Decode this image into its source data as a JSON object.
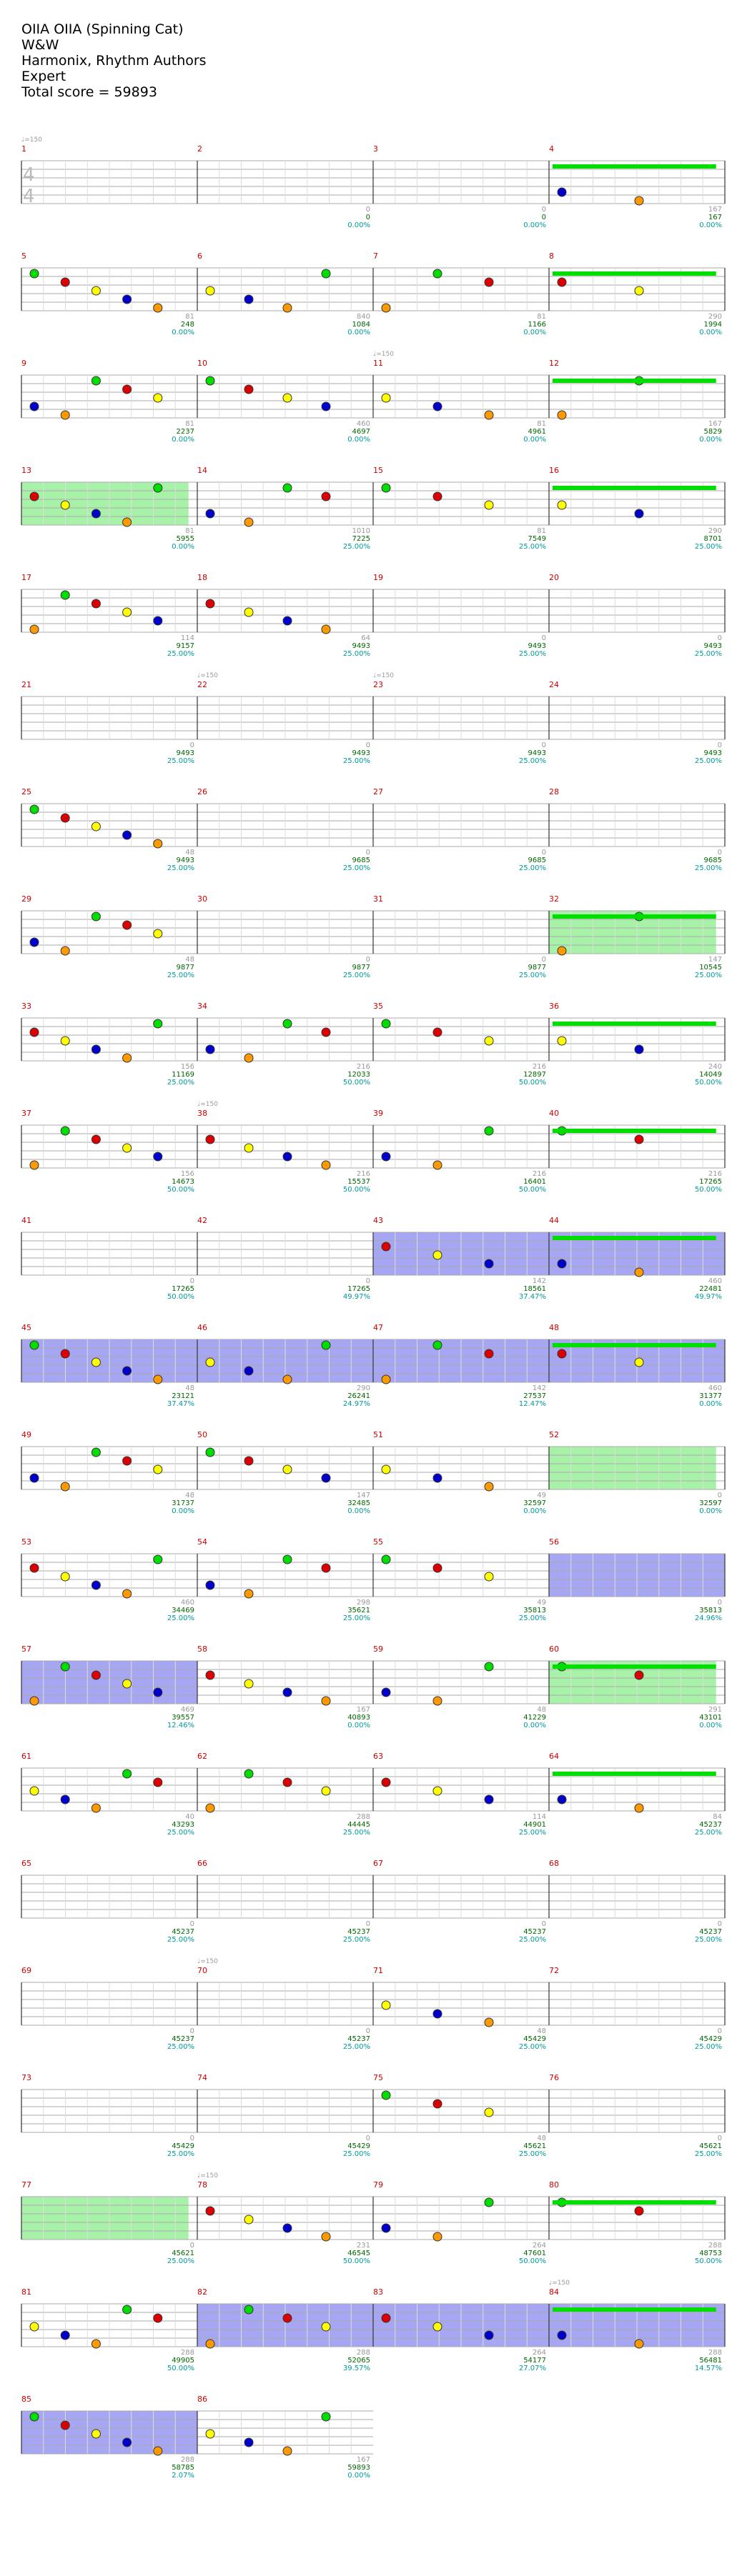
{
  "header": {
    "title": "OIIA OIIA (Spinning Cat)",
    "artist": "W&W",
    "charter": "Harmonix, Rhythm Authors",
    "difficulty": "Expert",
    "total_score": "Total score = 59893"
  },
  "time_signature": {
    "top": "4",
    "bottom": "4"
  },
  "tempo_markers": [
    {
      "measure": 1,
      "text": "♩=150"
    },
    {
      "measure": 11,
      "text": "♩=150"
    },
    {
      "measure": 22,
      "text": "♩=150"
    },
    {
      "measure": 23,
      "text": "♩=150"
    },
    {
      "measure": 38,
      "text": "♩=150"
    },
    {
      "measure": 70,
      "text": "♩=150"
    },
    {
      "measure": 78,
      "text": "♩=150"
    },
    {
      "measure": 84,
      "text": "♩=150"
    }
  ],
  "colors": {
    "measure_number": "#cc0000",
    "score_grey": "#999999",
    "score_green": "#006600",
    "percent_teal": "#009999",
    "green_gem": "#00dd00",
    "red_gem": "#dd0000",
    "yellow_gem": "#ffff00",
    "blue_gem": "#0000cc",
    "orange_gem": "#ff9900",
    "overdrive": "#99ee99",
    "solo": "#8888ee"
  },
  "measures": [
    {
      "n": 1,
      "pts": "",
      "score": "",
      "pct": ""
    },
    {
      "n": 2,
      "pts": "0",
      "score": "0",
      "pct": "0.00%"
    },
    {
      "n": 3,
      "pts": "0",
      "score": "0",
      "pct": "0.00%"
    },
    {
      "n": 4,
      "pts": "167",
      "score": "167",
      "pct": "0.00%"
    },
    {
      "n": 5,
      "pts": "81",
      "score": "248",
      "pct": "0.00%"
    },
    {
      "n": 6,
      "pts": "840",
      "score": "1084",
      "pct": "0.00%"
    },
    {
      "n": 7,
      "pts": "81",
      "score": "1166",
      "pct": "0.00%"
    },
    {
      "n": 8,
      "pts": "290",
      "score": "1994",
      "pct": "0.00%"
    },
    {
      "n": 9,
      "pts": "81",
      "score": "2237",
      "pct": "0.00%"
    },
    {
      "n": 10,
      "pts": "460",
      "score": "4697",
      "pct": "0.00%"
    },
    {
      "n": 11,
      "pts": "81",
      "score": "4961",
      "pct": "0.00%"
    },
    {
      "n": 12,
      "pts": "167",
      "score": "5829",
      "pct": "0.00%"
    },
    {
      "n": 13,
      "pts": "81",
      "score": "5955",
      "pct": "0.00%"
    },
    {
      "n": 14,
      "pts": "1010",
      "score": "7225",
      "pct": "25.00%"
    },
    {
      "n": 15,
      "pts": "81",
      "score": "7549",
      "pct": "25.00%"
    },
    {
      "n": 16,
      "pts": "290",
      "score": "8701",
      "pct": "25.00%"
    },
    {
      "n": 17,
      "pts": "114",
      "score": "9157",
      "pct": "25.00%"
    },
    {
      "n": 18,
      "pts": "64",
      "score": "9493",
      "pct": "25.00%"
    },
    {
      "n": 19,
      "pts": "0",
      "score": "9493",
      "pct": "25.00%"
    },
    {
      "n": 20,
      "pts": "0",
      "score": "9493",
      "pct": "25.00%"
    },
    {
      "n": 21,
      "pts": "0",
      "score": "9493",
      "pct": "25.00%"
    },
    {
      "n": 22,
      "pts": "0",
      "score": "9493",
      "pct": "25.00%"
    },
    {
      "n": 23,
      "pts": "0",
      "score": "9493",
      "pct": "25.00%"
    },
    {
      "n": 24,
      "pts": "0",
      "score": "9493",
      "pct": "25.00%"
    },
    {
      "n": 25,
      "pts": "48",
      "score": "9493",
      "pct": "25.00%"
    },
    {
      "n": 26,
      "pts": "0",
      "score": "9685",
      "pct": "25.00%"
    },
    {
      "n": 27,
      "pts": "0",
      "score": "9685",
      "pct": "25.00%"
    },
    {
      "n": 28,
      "pts": "0",
      "score": "9685",
      "pct": "25.00%"
    },
    {
      "n": 29,
      "pts": "48",
      "score": "9877",
      "pct": "25.00%"
    },
    {
      "n": 30,
      "pts": "0",
      "score": "9877",
      "pct": "25.00%"
    },
    {
      "n": 31,
      "pts": "0",
      "score": "9877",
      "pct": "25.00%"
    },
    {
      "n": 32,
      "pts": "147",
      "score": "10545",
      "pct": "25.00%"
    },
    {
      "n": 33,
      "pts": "156",
      "score": "11169",
      "pct": "25.00%"
    },
    {
      "n": 34,
      "pts": "216",
      "score": "12033",
      "pct": "50.00%"
    },
    {
      "n": 35,
      "pts": "216",
      "score": "12897",
      "pct": "50.00%"
    },
    {
      "n": 36,
      "pts": "240",
      "score": "14049",
      "pct": "50.00%"
    },
    {
      "n": 37,
      "pts": "156",
      "score": "14673",
      "pct": "50.00%"
    },
    {
      "n": 38,
      "pts": "216",
      "score": "15537",
      "pct": "50.00%"
    },
    {
      "n": 39,
      "pts": "216",
      "score": "16401",
      "pct": "50.00%"
    },
    {
      "n": 40,
      "pts": "216",
      "score": "17265",
      "pct": "50.00%"
    },
    {
      "n": 41,
      "pts": "0",
      "score": "17265",
      "pct": "50.00%"
    },
    {
      "n": 42,
      "pts": "0",
      "score": "17265",
      "pct": "49.97%"
    },
    {
      "n": 43,
      "pts": "142",
      "score": "18561",
      "pct": "37.47%"
    },
    {
      "n": 44,
      "pts": "460",
      "score": "22481",
      "pct": "49.97%"
    },
    {
      "n": 45,
      "pts": "48",
      "score": "23121",
      "pct": "37.47%"
    },
    {
      "n": 46,
      "pts": "290",
      "score": "26241",
      "pct": "24.97%"
    },
    {
      "n": 47,
      "pts": "142",
      "score": "27537",
      "pct": "12.47%"
    },
    {
      "n": 48,
      "pts": "460",
      "score": "31377",
      "pct": "0.00%"
    },
    {
      "n": 49,
      "pts": "48",
      "score": "31737",
      "pct": "0.00%"
    },
    {
      "n": 50,
      "pts": "147",
      "score": "32485",
      "pct": "0.00%"
    },
    {
      "n": 51,
      "pts": "49",
      "score": "32597",
      "pct": "0.00%"
    },
    {
      "n": 52,
      "pts": "0",
      "score": "32597",
      "pct": "0.00%"
    },
    {
      "n": 53,
      "pts": "460",
      "score": "34469",
      "pct": "25.00%"
    },
    {
      "n": 54,
      "pts": "298",
      "score": "35621",
      "pct": "25.00%"
    },
    {
      "n": 55,
      "pts": "49",
      "score": "35813",
      "pct": "25.00%"
    },
    {
      "n": 56,
      "pts": "0",
      "score": "35813",
      "pct": "24.96%"
    },
    {
      "n": 57,
      "pts": "469",
      "score": "39557",
      "pct": "12.46%"
    },
    {
      "n": 58,
      "pts": "167",
      "score": "40893",
      "pct": "0.00%"
    },
    {
      "n": 59,
      "pts": "48",
      "score": "41229",
      "pct": "0.00%"
    },
    {
      "n": 60,
      "pts": "291",
      "score": "43101",
      "pct": "0.00%"
    },
    {
      "n": 61,
      "pts": "40",
      "score": "43293",
      "pct": "25.00%"
    },
    {
      "n": 62,
      "pts": "288",
      "score": "44445",
      "pct": "25.00%"
    },
    {
      "n": 63,
      "pts": "114",
      "score": "44901",
      "pct": "25.00%"
    },
    {
      "n": 64,
      "pts": "84",
      "score": "45237",
      "pct": "25.00%"
    },
    {
      "n": 65,
      "pts": "0",
      "score": "45237",
      "pct": "25.00%"
    },
    {
      "n": 66,
      "pts": "0",
      "score": "45237",
      "pct": "25.00%"
    },
    {
      "n": 67,
      "pts": "0",
      "score": "45237",
      "pct": "25.00%"
    },
    {
      "n": 68,
      "pts": "0",
      "score": "45237",
      "pct": "25.00%"
    },
    {
      "n": 69,
      "pts": "0",
      "score": "45237",
      "pct": "25.00%"
    },
    {
      "n": 70,
      "pts": "0",
      "score": "45237",
      "pct": "25.00%"
    },
    {
      "n": 71,
      "pts": "48",
      "score": "45429",
      "pct": "25.00%"
    },
    {
      "n": 72,
      "pts": "0",
      "score": "45429",
      "pct": "25.00%"
    },
    {
      "n": 73,
      "pts": "0",
      "score": "45429",
      "pct": "25.00%"
    },
    {
      "n": 74,
      "pts": "0",
      "score": "45429",
      "pct": "25.00%"
    },
    {
      "n": 75,
      "pts": "48",
      "score": "45621",
      "pct": "25.00%"
    },
    {
      "n": 76,
      "pts": "0",
      "score": "45621",
      "pct": "25.00%"
    },
    {
      "n": 77,
      "pts": "0",
      "score": "45621",
      "pct": "25.00%"
    },
    {
      "n": 78,
      "pts": "231",
      "score": "46545",
      "pct": "50.00%"
    },
    {
      "n": 79,
      "pts": "264",
      "score": "47601",
      "pct": "50.00%"
    },
    {
      "n": 80,
      "pts": "288",
      "score": "48753",
      "pct": "50.00%"
    },
    {
      "n": 81,
      "pts": "288",
      "score": "49905",
      "pct": "50.00%"
    },
    {
      "n": 82,
      "pts": "288",
      "score": "52065",
      "pct": "39.57%"
    },
    {
      "n": 83,
      "pts": "264",
      "score": "54177",
      "pct": "27.07%"
    },
    {
      "n": 84,
      "pts": "288",
      "score": "56481",
      "pct": "14.57%"
    },
    {
      "n": 85,
      "pts": "288",
      "score": "58785",
      "pct": "2.07%"
    },
    {
      "n": 86,
      "pts": "167",
      "score": "59893",
      "pct": "0.00%"
    }
  ]
}
